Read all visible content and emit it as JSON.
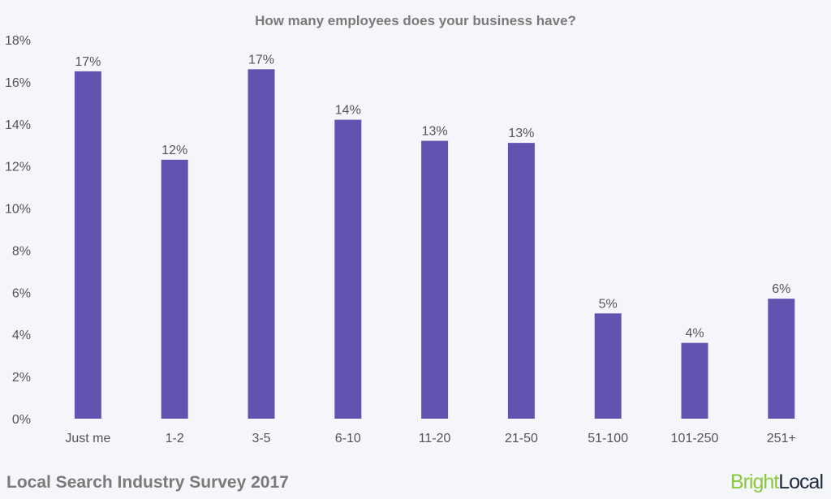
{
  "chart_data": {
    "type": "bar",
    "title": "How many employees does your business have?",
    "categories": [
      "Just me",
      "1-2",
      "3-5",
      "6-10",
      "11-20",
      "21-50",
      "51-100",
      "101-250",
      "251+"
    ],
    "values": [
      16.5,
      12.3,
      16.6,
      14.2,
      13.2,
      13.1,
      5.0,
      3.6,
      5.7
    ],
    "data_labels": [
      "17%",
      "12%",
      "17%",
      "14%",
      "13%",
      "13%",
      "5%",
      "4%",
      "6%"
    ],
    "yticks": [
      "0%",
      "2%",
      "4%",
      "6%",
      "8%",
      "10%",
      "12%",
      "14%",
      "16%",
      "18%"
    ],
    "ylim": [
      0,
      18
    ],
    "xlabel": "",
    "ylabel": "",
    "grid": false,
    "bar_color": "#6353b0"
  },
  "footer": {
    "survey": "Local Search Industry Survey 2017",
    "logo_bright": "Bright",
    "logo_local": "Local"
  }
}
